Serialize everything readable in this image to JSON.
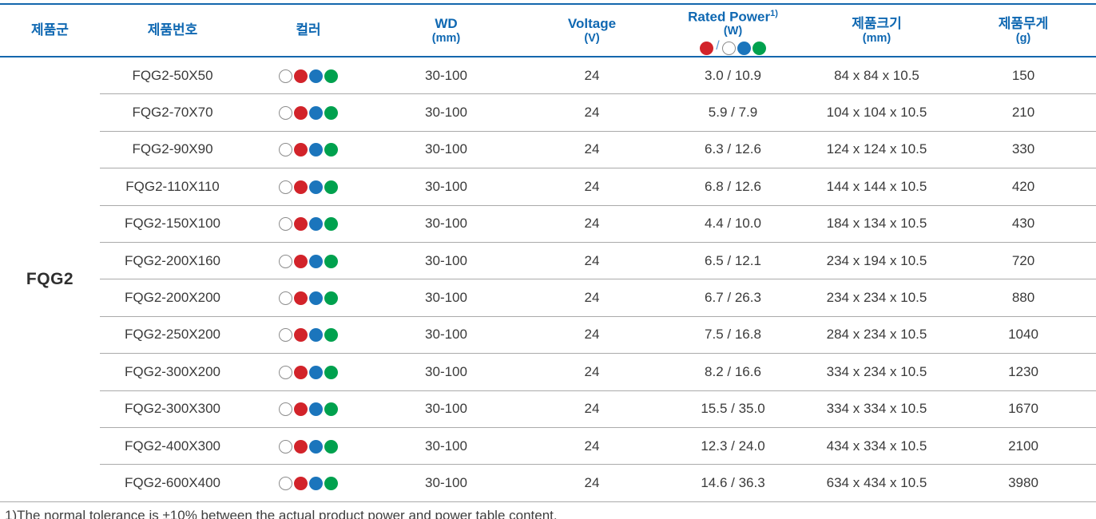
{
  "table": {
    "group_label": "FQG2",
    "columns": [
      {
        "label": "제품군",
        "unit": ""
      },
      {
        "label": "제품번호",
        "unit": ""
      },
      {
        "label": "컬러",
        "unit": ""
      },
      {
        "label": "WD",
        "unit": "(mm)"
      },
      {
        "label": "Voltage",
        "unit": "(V)"
      },
      {
        "label": "Rated Power",
        "sup": "1)",
        "unit": "(W)"
      },
      {
        "label": "제품크기",
        "unit": "(mm)"
      },
      {
        "label": "제품무게",
        "unit": "(g)"
      }
    ],
    "power_legend": {
      "left_dots": [
        "red"
      ],
      "separator": "/",
      "right_dots": [
        "white",
        "blue",
        "green"
      ]
    },
    "row_color_dots": [
      "white",
      "red",
      "blue",
      "green"
    ],
    "rows": [
      {
        "part": "FQG2-50X50",
        "wd": "30-100",
        "voltage": "24",
        "power": "3.0 / 10.9",
        "size": "84 x 84 x 10.5",
        "weight": "150"
      },
      {
        "part": "FQG2-70X70",
        "wd": "30-100",
        "voltage": "24",
        "power": "5.9 / 7.9",
        "size": "104 x 104 x 10.5",
        "weight": "210"
      },
      {
        "part": "FQG2-90X90",
        "wd": "30-100",
        "voltage": "24",
        "power": "6.3 / 12.6",
        "size": "124 x 124 x 10.5",
        "weight": "330"
      },
      {
        "part": "FQG2-110X110",
        "wd": "30-100",
        "voltage": "24",
        "power": "6.8 / 12.6",
        "size": "144 x 144 x 10.5",
        "weight": "420"
      },
      {
        "part": "FQG2-150X100",
        "wd": "30-100",
        "voltage": "24",
        "power": "4.4 / 10.0",
        "size": "184 x 134 x 10.5",
        "weight": "430"
      },
      {
        "part": "FQG2-200X160",
        "wd": "30-100",
        "voltage": "24",
        "power": "6.5 / 12.1",
        "size": "234 x 194 x 10.5",
        "weight": "720"
      },
      {
        "part": "FQG2-200X200",
        "wd": "30-100",
        "voltage": "24",
        "power": "6.7 / 26.3",
        "size": "234 x 234 x 10.5",
        "weight": "880"
      },
      {
        "part": "FQG2-250X200",
        "wd": "30-100",
        "voltage": "24",
        "power": "7.5 / 16.8",
        "size": "284 x 234 x 10.5",
        "weight": "1040"
      },
      {
        "part": "FQG2-300X200",
        "wd": "30-100",
        "voltage": "24",
        "power": "8.2 / 16.6",
        "size": "334 x 234 x 10.5",
        "weight": "1230"
      },
      {
        "part": "FQG2-300X300",
        "wd": "30-100",
        "voltage": "24",
        "power": "15.5 / 35.0",
        "size": "334 x 334 x 10.5",
        "weight": "1670"
      },
      {
        "part": "FQG2-400X300",
        "wd": "30-100",
        "voltage": "24",
        "power": "12.3 / 24.0",
        "size": "434 x 334 x 10.5",
        "weight": "2100"
      },
      {
        "part": "FQG2-600X400",
        "wd": "30-100",
        "voltage": "24",
        "power": "14.6 / 36.3",
        "size": "634 x 434 x 10.5",
        "weight": "3980"
      }
    ]
  },
  "footnote": "1)The normal tolerance is ±10% between the actual product power and power table content.",
  "colors": {
    "header_blue": "#0f68b2",
    "line_blue": "#1467ad",
    "row_line": "#aaaaaa",
    "text": "#3a3a3a",
    "red": "#d2232a",
    "blue": "#1b75bc",
    "green": "#00a14e",
    "dot_border": "#8c8c8c",
    "legend_slash": "#5b97d4"
  }
}
